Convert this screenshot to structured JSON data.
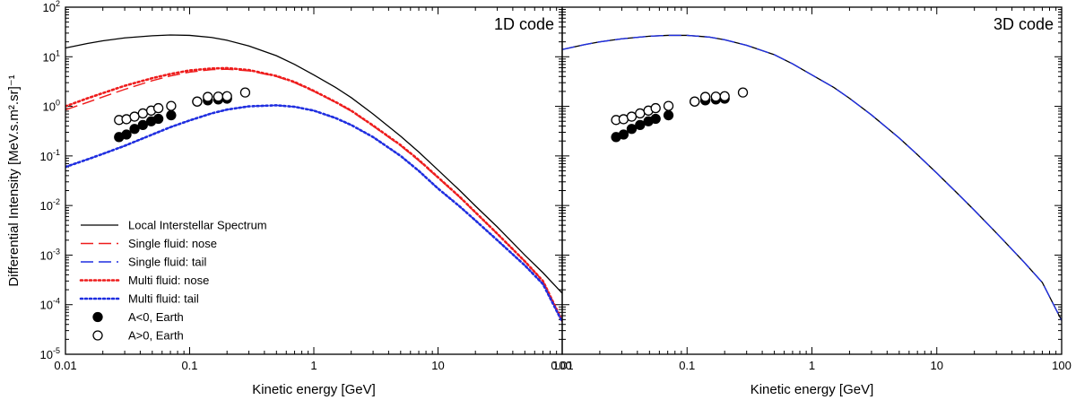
{
  "chart_data": {
    "type": "line",
    "ylabel": "Differential Intensity [MeV.s.m².sr]⁻¹",
    "x_scale": "log",
    "y_scale": "log",
    "xlim": [
      0.01,
      100
    ],
    "ylim": [
      1e-05,
      100
    ],
    "grid": false,
    "legend_position": "lower-left",
    "x_tick_labels": [
      "0.01",
      "0.1",
      "1",
      "10",
      "100"
    ],
    "y_tick_labels": [
      {
        "base": "10",
        "exp": "-5"
      },
      {
        "base": "10",
        "exp": "-4"
      },
      {
        "base": "10",
        "exp": "-3"
      },
      {
        "base": "10",
        "exp": "-2"
      },
      {
        "base": "10",
        "exp": "-1"
      },
      {
        "base": "10",
        "exp": "0"
      },
      {
        "base": "10",
        "exp": "1"
      },
      {
        "base": "10",
        "exp": "2"
      }
    ],
    "panels": [
      {
        "title": "1D code",
        "xlabel": "Kinetic energy [GeV]",
        "series": [
          {
            "name": "Local Interstellar Spectrum",
            "color": "#000000",
            "style": "solid",
            "x": [
              0.01,
              0.015,
              0.02,
              0.03,
              0.05,
              0.07,
              0.1,
              0.15,
              0.2,
              0.3,
              0.5,
              0.7,
              1,
              1.5,
              2,
              3,
              5,
              7,
              10,
              15,
              20,
              30,
              50,
              70,
              100
            ],
            "y": [
              15,
              18.5,
              21,
              24,
              26.5,
              27.5,
              27,
              24.5,
              21.5,
              16.5,
              10.5,
              7,
              4.3,
              2.4,
              1.5,
              0.7,
              0.25,
              0.12,
              0.052,
              0.02,
              0.0098,
              0.0037,
              0.001,
              0.00044,
              0.00017
            ]
          },
          {
            "name": "Single fluid: nose",
            "color": "#ee1c1c",
            "style": "dash",
            "x": [
              0.01,
              0.015,
              0.02,
              0.03,
              0.05,
              0.07,
              0.1,
              0.15,
              0.2,
              0.3,
              0.5,
              0.7,
              1,
              1.5,
              2,
              3,
              5,
              7,
              10,
              15,
              20,
              30,
              50,
              70,
              100
            ],
            "y": [
              0.85,
              1.2,
              1.55,
              2.2,
              3.3,
              4.1,
              4.9,
              5.5,
              5.6,
              5.2,
              4.0,
              3.0,
              2.0,
              1.2,
              0.8,
              0.4,
              0.16,
              0.08,
              0.036,
              0.0145,
              0.0072,
              0.0027,
              0.00075,
              0.0003,
              4.7e-05
            ]
          },
          {
            "name": "Single fluid: tail",
            "color": "#1f2ee0",
            "style": "dash",
            "x": [
              0.01,
              0.015,
              0.02,
              0.03,
              0.05,
              0.07,
              0.1,
              0.15,
              0.2,
              0.3,
              0.5,
              0.7,
              1,
              1.5,
              2,
              3,
              5,
              7,
              10,
              15,
              20,
              30,
              50,
              70,
              100
            ],
            "y": [
              0.06,
              0.085,
              0.11,
              0.16,
              0.27,
              0.38,
              0.52,
              0.72,
              0.86,
              1.0,
              1.05,
              0.98,
              0.82,
              0.58,
              0.42,
              0.24,
              0.1,
              0.05,
              0.022,
              0.0095,
              0.005,
              0.002,
              0.00062,
              0.00026,
              4.5e-05
            ]
          },
          {
            "name": "Multi fluid: nose",
            "color": "#ee1c1c",
            "style": "dot",
            "x": [
              0.01,
              0.015,
              0.02,
              0.03,
              0.05,
              0.07,
              0.1,
              0.15,
              0.2,
              0.3,
              0.5,
              0.7,
              1,
              1.5,
              2,
              3,
              5,
              7,
              10,
              15,
              20,
              30,
              50,
              70,
              100
            ],
            "y": [
              1.0,
              1.45,
              1.85,
              2.6,
              3.7,
              4.5,
              5.3,
              5.8,
              5.9,
              5.4,
              4.1,
              3.1,
              2.05,
              1.22,
              0.82,
              0.41,
              0.165,
              0.083,
              0.037,
              0.0148,
              0.0073,
              0.0027,
              0.00075,
              0.0003,
              4.7e-05
            ]
          },
          {
            "name": "Multi fluid: tail",
            "color": "#1f2ee0",
            "style": "dot",
            "x": [
              0.01,
              0.015,
              0.02,
              0.03,
              0.05,
              0.07,
              0.1,
              0.15,
              0.2,
              0.3,
              0.5,
              0.7,
              1,
              1.5,
              2,
              3,
              5,
              7,
              10,
              15,
              20,
              30,
              50,
              70,
              100
            ],
            "y": [
              0.06,
              0.085,
              0.11,
              0.16,
              0.27,
              0.38,
              0.52,
              0.72,
              0.86,
              1.0,
              1.05,
              0.98,
              0.82,
              0.58,
              0.42,
              0.24,
              0.1,
              0.05,
              0.022,
              0.0095,
              0.005,
              0.002,
              0.00062,
              0.00026,
              4.5e-05
            ]
          },
          {
            "name": "A<0, Earth",
            "marker": "filled-circle",
            "color": "#000000",
            "x": [
              0.027,
              0.031,
              0.036,
              0.042,
              0.049,
              0.056,
              0.071,
              0.115,
              0.14,
              0.17,
              0.2
            ],
            "y": [
              0.24,
              0.27,
              0.35,
              0.42,
              0.5,
              0.56,
              0.66,
              1.25,
              1.32,
              1.38,
              1.43
            ]
          },
          {
            "name": "A>0, Earth",
            "marker": "open-circle",
            "color": "#000000",
            "x": [
              0.027,
              0.031,
              0.036,
              0.042,
              0.049,
              0.056,
              0.071,
              0.115,
              0.14,
              0.17,
              0.2,
              0.28
            ],
            "y": [
              0.53,
              0.55,
              0.62,
              0.72,
              0.82,
              0.92,
              1.02,
              1.25,
              1.55,
              1.57,
              1.6,
              1.9
            ]
          }
        ]
      },
      {
        "title": "3D code",
        "xlabel": "Kinetic energy [GeV]",
        "series": [
          {
            "color": "#000000",
            "style": "solid",
            "x": [
              0.01,
              0.015,
              0.02,
              0.03,
              0.05,
              0.07,
              0.1,
              0.15,
              0.2,
              0.3,
              0.5,
              0.7,
              1,
              1.5,
              2,
              3,
              5,
              7,
              10,
              15,
              20,
              30,
              50,
              70,
              100
            ],
            "y": [
              14,
              17.5,
              20,
              23,
              26,
              27,
              27,
              25,
              22,
              17,
              11,
              7.2,
              4.3,
              2.4,
              1.45,
              0.67,
              0.23,
              0.106,
              0.045,
              0.0165,
              0.008,
              0.0028,
              0.00072,
              0.00028,
              4.8e-05
            ]
          },
          {
            "color": "#1f2ee0",
            "style": "dash",
            "x": [
              0.01,
              0.015,
              0.02,
              0.03,
              0.05,
              0.07,
              0.1,
              0.15,
              0.2,
              0.3,
              0.5,
              0.7,
              1,
              1.5,
              2,
              3,
              5,
              7,
              10,
              15,
              20,
              30,
              50,
              70,
              100
            ],
            "y": [
              14,
              17.5,
              20,
              23,
              26,
              27,
              27,
              25,
              22,
              17,
              11,
              7.2,
              4.3,
              2.4,
              1.45,
              0.67,
              0.23,
              0.106,
              0.045,
              0.0165,
              0.008,
              0.0028,
              0.00072,
              0.00028,
              4.8e-05
            ]
          },
          {
            "marker": "filled-circle",
            "color": "#000000",
            "x": [
              0.027,
              0.031,
              0.036,
              0.042,
              0.049,
              0.056,
              0.071,
              0.115,
              0.14,
              0.17,
              0.2
            ],
            "y": [
              0.24,
              0.27,
              0.35,
              0.42,
              0.5,
              0.56,
              0.66,
              1.25,
              1.32,
              1.38,
              1.43
            ]
          },
          {
            "marker": "open-circle",
            "color": "#000000",
            "x": [
              0.027,
              0.031,
              0.036,
              0.042,
              0.049,
              0.056,
              0.071,
              0.115,
              0.14,
              0.17,
              0.2,
              0.28
            ],
            "y": [
              0.53,
              0.55,
              0.62,
              0.72,
              0.82,
              0.92,
              1.02,
              1.25,
              1.55,
              1.57,
              1.6,
              1.9
            ]
          }
        ]
      }
    ]
  }
}
